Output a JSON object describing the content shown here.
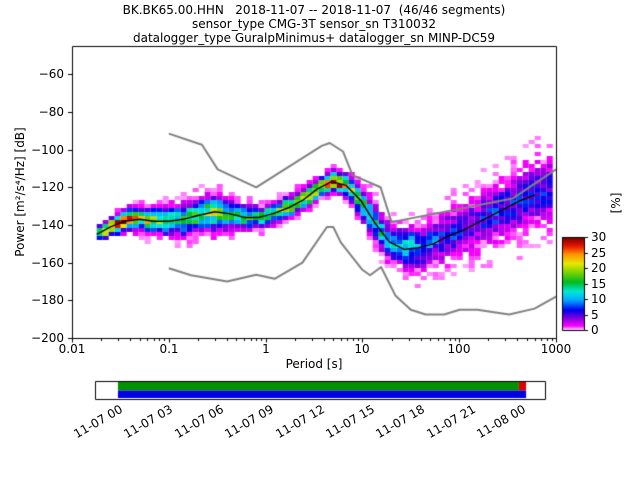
{
  "figure": {
    "titles": [
      "BK.BK65.00.HHN   2018-11-07 -- 2018-11-07  (46/46 segments)",
      "sensor_type CMG-3T sensor_sn T310032",
      "datalogger_type GuralpMinimus+ datalogger_sn MINP-DC59"
    ]
  },
  "chart_data": {
    "type": "heatmap",
    "title": "BK.BK65.00.HHN   2018-11-07 -- 2018-11-07  (46/46 segments)",
    "subtitle_lines": [
      "sensor_type CMG-3T sensor_sn T310032",
      "datalogger_type GuralpMinimus+ datalogger_sn MINP-DC59"
    ],
    "xlabel": "Period [s]",
    "ylabel": "Power [m²/s⁴/Hz] [dB]",
    "xscale": "log",
    "xlim": [
      0.01,
      1000
    ],
    "ylim": [
      -200,
      -45
    ],
    "xtick_labels": [
      "0.01",
      "0.1",
      "1",
      "10",
      "100",
      "1000"
    ],
    "xtick_values": [
      0.01,
      0.1,
      1,
      10,
      100,
      1000
    ],
    "ytick_labels": [
      "−60",
      "−80",
      "−100",
      "−120",
      "−140",
      "−160",
      "−180",
      "−200"
    ],
    "ytick_values": [
      -60,
      -80,
      -100,
      -120,
      -140,
      -160,
      -180,
      -200
    ],
    "grid": false,
    "colorbar": {
      "label": "[%]",
      "tick_labels": [
        "30",
        "25",
        "20",
        "15",
        "10",
        "5",
        "0"
      ],
      "tick_values": [
        30,
        25,
        20,
        15,
        10,
        5,
        0
      ],
      "min": 0,
      "max": 30,
      "colormap_name": "pqlx",
      "stops": [
        [
          0.0,
          "#ffffff"
        ],
        [
          0.05,
          "#ff00ff"
        ],
        [
          0.13,
          "#8800dd"
        ],
        [
          0.22,
          "#0000ee"
        ],
        [
          0.33,
          "#00aaff"
        ],
        [
          0.42,
          "#00e8d5"
        ],
        [
          0.52,
          "#00bb22"
        ],
        [
          0.63,
          "#7fd400"
        ],
        [
          0.72,
          "#e8e800"
        ],
        [
          0.82,
          "#ff9500"
        ],
        [
          0.91,
          "#e81500"
        ],
        [
          1.0,
          "#7a0000"
        ]
      ]
    },
    "noise_models": {
      "color": "#808080",
      "nhnm": [
        [
          0.1,
          -91.5
        ],
        [
          0.22,
          -97.4
        ],
        [
          0.32,
          -110.5
        ],
        [
          0.8,
          -120
        ],
        [
          3.8,
          -98
        ],
        [
          4.6,
          -96.5
        ],
        [
          6.3,
          -101
        ],
        [
          7.9,
          -113.5
        ],
        [
          15.4,
          -120
        ],
        [
          20,
          -138.5
        ],
        [
          354.8,
          -126
        ],
        [
          1000,
          -110.5
        ]
      ],
      "nlnm": [
        [
          0.1,
          -163
        ],
        [
          0.17,
          -166.7
        ],
        [
          0.4,
          -170
        ],
        [
          0.8,
          -166.4
        ],
        [
          1.24,
          -168.6
        ],
        [
          2.4,
          -160
        ],
        [
          4.3,
          -141.1
        ],
        [
          5,
          -141.1
        ],
        [
          6,
          -149.4
        ],
        [
          10,
          -163.8
        ],
        [
          12,
          -166.7
        ],
        [
          15.6,
          -162.3
        ],
        [
          21.9,
          -177.4
        ],
        [
          31.6,
          -185
        ],
        [
          45,
          -187.5
        ],
        [
          70,
          -187.5
        ],
        [
          101,
          -185
        ],
        [
          154,
          -185
        ],
        [
          328,
          -187.5
        ],
        [
          600,
          -184.4
        ],
        [
          1000,
          -178.1
        ]
      ]
    },
    "psd": {
      "mode_color": "#000000",
      "periods": [
        0.018,
        0.025,
        0.035,
        0.05,
        0.07,
        0.1,
        0.14,
        0.2,
        0.3,
        0.42,
        0.6,
        0.85,
        1.2,
        1.7,
        2.4,
        3.4,
        4.8,
        6.8,
        9.6,
        13.5,
        19,
        27,
        38,
        54,
        76,
        108,
        152,
        215,
        304,
        430,
        608,
        860
      ],
      "mode_db": [
        -145,
        -141,
        -138,
        -137,
        -138,
        -138,
        -137,
        -135,
        -133,
        -134,
        -136,
        -136,
        -134,
        -131,
        -127,
        -121,
        -117,
        -119,
        -127,
        -139,
        -149,
        -153,
        -152,
        -150,
        -146,
        -143,
        -139,
        -135,
        -131,
        -127,
        -124,
        -122
      ],
      "spread_db": [
        2,
        2.5,
        3,
        3,
        3.5,
        4,
        4.5,
        4.5,
        5,
        4,
        3.5,
        3,
        3,
        3,
        3,
        2.5,
        2.5,
        3,
        4,
        5,
        5,
        5,
        6,
        6,
        7,
        7,
        8,
        8,
        8,
        9,
        9,
        9
      ],
      "peak_pct": [
        18,
        25,
        28,
        22,
        18,
        15,
        14,
        16,
        18,
        15,
        14,
        15,
        16,
        18,
        20,
        26,
        30,
        24,
        16,
        12,
        12,
        14,
        10,
        8,
        7,
        6,
        5,
        7,
        7,
        6,
        6,
        6
      ]
    },
    "timeline": {
      "labels": [
        "11-07 00",
        "11-07 03",
        "11-07 06",
        "11-07 09",
        "11-07 12",
        "11-07 15",
        "11-07 18",
        "11-07 21",
        "11-08 00"
      ],
      "colors": {
        "data": "#009100",
        "gap": "#dd0000",
        "processed": "#0000e0"
      },
      "segments": [
        {
          "type": "data",
          "row": "top",
          "from": 0.051,
          "to": 0.942
        },
        {
          "type": "gap",
          "row": "top",
          "from": 0.942,
          "to": 0.958
        },
        {
          "type": "processed",
          "row": "bottom",
          "from": 0.051,
          "to": 0.958
        }
      ]
    }
  }
}
